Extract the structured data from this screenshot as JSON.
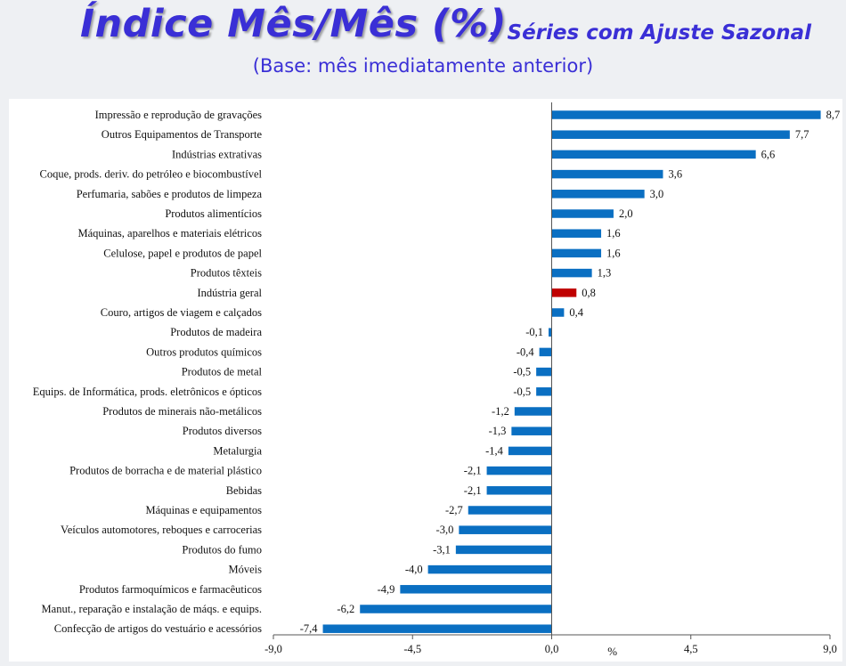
{
  "header": {
    "title": "Índice Mês/Mês (%)",
    "subtitle": "– Séries com Ajuste Sazonal",
    "base_note": "(Base: mês imediatamente anterior)"
  },
  "colors": {
    "bar": "#0a6fc2",
    "highlight_bar": "#c00000",
    "title": "#3a2fd6"
  },
  "chart_data": {
    "type": "bar",
    "orientation": "horizontal",
    "categories": [
      "Impressão e reprodução de gravações",
      "Outros Equipamentos de Transporte",
      "Indústrias extrativas",
      "Coque, prods. deriv. do petróleo e biocombustível",
      "Perfumaria, sabões e produtos de limpeza",
      "Produtos alimentícios",
      "Máquinas, aparelhos e materiais elétricos",
      "Celulose, papel e produtos de papel",
      "Produtos têxteis",
      "Indústria geral",
      "Couro, artigos de viagem e calçados",
      "Produtos de madeira",
      "Outros produtos químicos",
      "Produtos de metal",
      "Equips. de Informática, prods. eletrônicos e ópticos",
      "Produtos de minerais não-metálicos",
      "Produtos diversos",
      "Metalurgia",
      "Produtos de borracha e de material plástico",
      "Bebidas",
      "Máquinas e equipamentos",
      "Veículos automotores, reboques e carrocerias",
      "Produtos do fumo",
      "Móveis",
      "Produtos farmoquímicos e farmacêuticos",
      "Manut., reparação e instalação de máqs. e equips.",
      "Confecção de artigos do vestuário e acessórios"
    ],
    "values": [
      8.7,
      7.7,
      6.6,
      3.6,
      3.0,
      2.0,
      1.6,
      1.6,
      1.3,
      0.8,
      0.4,
      -0.1,
      -0.4,
      -0.5,
      -0.5,
      -1.2,
      -1.3,
      -1.4,
      -2.1,
      -2.1,
      -2.7,
      -3.0,
      -3.1,
      -4.0,
      -4.9,
      -6.2,
      -7.4
    ],
    "value_labels": [
      "8,7",
      "7,7",
      "6,6",
      "3,6",
      "3,0",
      "2,0",
      "1,6",
      "1,6",
      "1,3",
      "0,8",
      "0,4",
      "-0,1",
      "-0,4",
      "-0,5",
      "-0,5",
      "-1,2",
      "-1,3",
      "-1,4",
      "-2,1",
      "-2,1",
      "-2,7",
      "-3,0",
      "-3,1",
      "-4,0",
      "-4,9",
      "-6,2",
      "-7,4"
    ],
    "highlight_category": "Indústria geral",
    "xlim": [
      -9.0,
      9.0
    ],
    "x_ticks": [
      -9.0,
      -4.5,
      0.0,
      4.5,
      9.0
    ],
    "x_tick_labels": [
      "-9,0",
      "-4,5",
      "0,0",
      "4,5",
      "9,0"
    ],
    "x_unit_label": "%",
    "grid": false,
    "legend": "none"
  }
}
